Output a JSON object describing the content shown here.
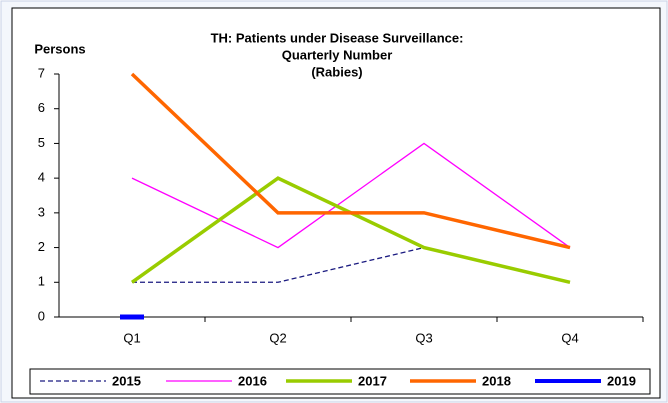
{
  "chart_data": {
    "type": "line",
    "title": [
      "TH: Patients under Disease Surveillance:",
      "Quarterly Number",
      "(Rabies)"
    ],
    "y_label": "Persons",
    "categories": [
      "Q1",
      "Q2",
      "Q3",
      "Q4"
    ],
    "series": [
      {
        "name": "2015",
        "color": "#1a1a80",
        "style": "dashed",
        "values": [
          1,
          1,
          2,
          null
        ]
      },
      {
        "name": "2016",
        "color": "#ff00ff",
        "style": "solid",
        "values": [
          4,
          2,
          5,
          2
        ]
      },
      {
        "name": "2017",
        "color": "#99cc00",
        "style": "solid",
        "values": [
          1,
          4,
          2,
          1
        ]
      },
      {
        "name": "2018",
        "color": "#ff6600",
        "style": "solid",
        "values": [
          7,
          3,
          3,
          2
        ]
      },
      {
        "name": "2019",
        "color": "#0000ff",
        "style": "solid",
        "values": [
          0,
          null,
          null,
          null
        ]
      }
    ],
    "ylim": [
      0,
      7
    ],
    "yticks": [
      0,
      1,
      2,
      3,
      4,
      5,
      6,
      7
    ],
    "grid": false,
    "legend": "bottom"
  }
}
